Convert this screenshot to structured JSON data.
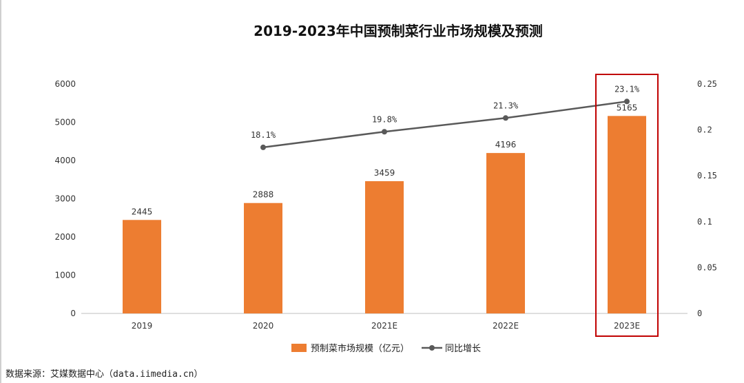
{
  "chart_data": {
    "type": "bar",
    "title": "2019-2023年中国预制菜行业市场规模及预测",
    "categories": [
      "2019",
      "2020",
      "2021E",
      "2022E",
      "2023E"
    ],
    "series": [
      {
        "name": "预制菜市场规模（亿元）",
        "type": "bar",
        "axis": "left",
        "values": [
          2445,
          2888,
          3459,
          4196,
          5165
        ],
        "labels": [
          "2445",
          "2888",
          "3459",
          "4196",
          "5165"
        ]
      },
      {
        "name": "同比增长",
        "type": "line",
        "axis": "right",
        "values": [
          null,
          0.181,
          0.198,
          0.213,
          0.231
        ],
        "labels": [
          "",
          "18.1%",
          "19.8%",
          "21.3%",
          "23.1%"
        ]
      }
    ],
    "ylim": [
      0,
      6000
    ],
    "y_ticks": [
      "0",
      "1000",
      "2000",
      "3000",
      "4000",
      "5000",
      "6000"
    ],
    "y2lim": [
      0,
      0.25
    ],
    "y2_ticks": [
      "0",
      "0.05",
      "0.1",
      "0.15",
      "0.2",
      "0.25"
    ],
    "legend_position": "bottom",
    "grid": false,
    "highlight_category": "2023E"
  },
  "source_note": "数据来源：艾媒数据中心（data.iimedia.cn）",
  "colors": {
    "bar": "#ED7D31",
    "line": "#595959",
    "highlight": "#C00000",
    "axis": "#BFBFBF"
  }
}
